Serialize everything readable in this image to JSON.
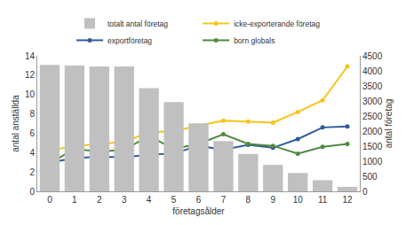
{
  "chart_data": {
    "type": "bar",
    "x_label": "företagsålder",
    "y_label": "antal anställda",
    "y2_label": "antal företag",
    "x": [
      0,
      1,
      2,
      3,
      4,
      5,
      6,
      7,
      8,
      9,
      10,
      11,
      12
    ],
    "xlim": [
      -0.5,
      12.5
    ],
    "xticks": [
      0,
      1,
      2,
      3,
      4,
      5,
      6,
      7,
      8,
      9,
      10,
      11,
      12
    ],
    "ylim": [
      0,
      14
    ],
    "yticks": [
      0,
      2,
      4,
      6,
      8,
      10,
      12,
      14
    ],
    "y2lim": [
      0,
      4500
    ],
    "y2ticks": [
      0,
      500,
      1000,
      1500,
      2000,
      2500,
      3000,
      3500,
      4000,
      4500
    ],
    "grid": false,
    "legend": "top",
    "series": [
      {
        "name": "totalt antal företag",
        "type": "bar",
        "axis": "y2",
        "color": "#c0c0c0",
        "values": [
          4200,
          4180,
          4150,
          4150,
          3430,
          2960,
          2260,
          1670,
          1240,
          880,
          610,
          370,
          150
        ]
      },
      {
        "name": "icke-exporterande företag",
        "type": "line",
        "marker": "circle",
        "color": "#f5c518",
        "values": [
          4.2,
          4.7,
          4.9,
          5.1,
          6.1,
          6.2,
          6.8,
          7.3,
          7.2,
          7.1,
          8.2,
          9.4,
          12.9
        ]
      },
      {
        "name": "exportföretag",
        "type": "line",
        "marker": "circle",
        "color": "#2e5c9a",
        "values": [
          3.0,
          3.4,
          3.6,
          3.5,
          3.8,
          3.9,
          4.7,
          4.3,
          4.8,
          4.5,
          5.4,
          6.6,
          6.7
        ]
      },
      {
        "name": "born globals",
        "type": "line",
        "marker": "circle",
        "color": "#4e8a3e",
        "values": [
          2.9,
          4.4,
          4.1,
          4.3,
          5.7,
          4.4,
          4.9,
          5.9,
          4.9,
          4.7,
          3.9,
          4.6,
          4.9
        ]
      }
    ]
  }
}
